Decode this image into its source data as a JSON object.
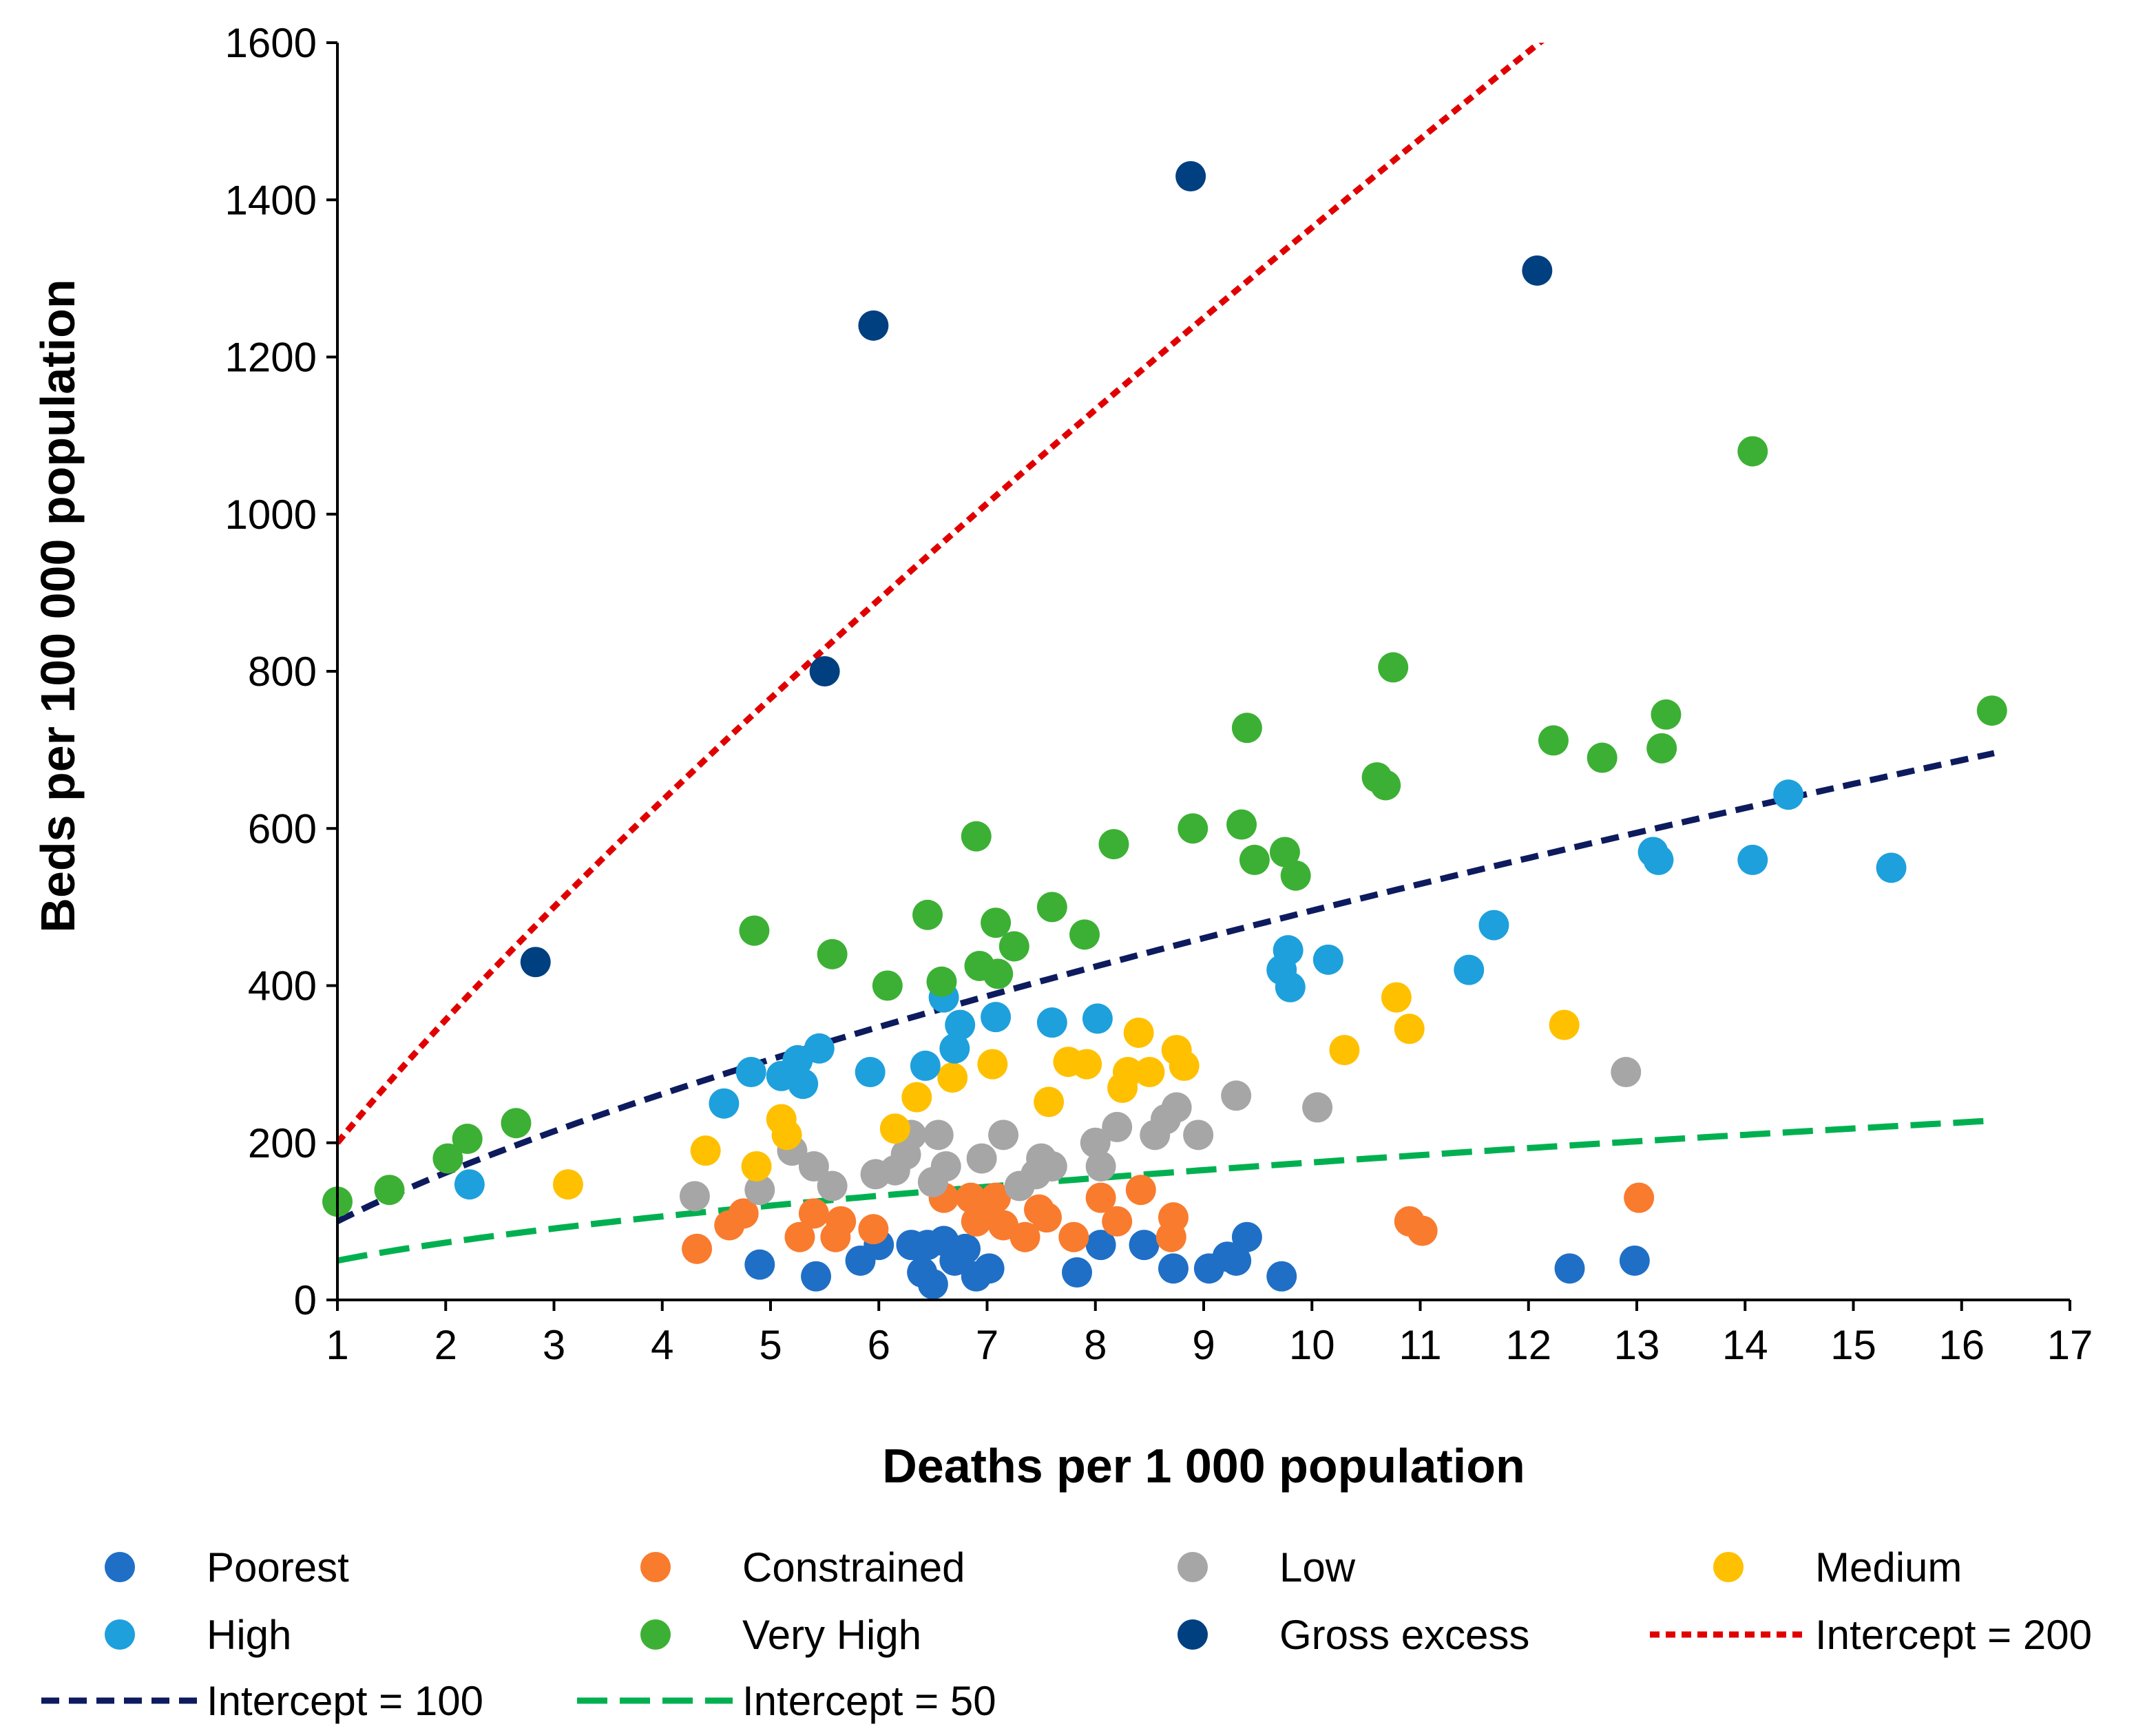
{
  "chart_data": {
    "type": "scatter",
    "title": "",
    "xlabel": "Deaths per 1 000 population",
    "ylabel": "Beds per 100 000 population",
    "xlim": [
      1,
      17
    ],
    "ylim": [
      0,
      1600
    ],
    "xticks": [
      1,
      2,
      3,
      4,
      5,
      6,
      7,
      8,
      9,
      10,
      11,
      12,
      13,
      14,
      15,
      16,
      17
    ],
    "yticks": [
      0,
      200,
      400,
      600,
      800,
      1000,
      1200,
      1400,
      1600
    ],
    "grid": false,
    "legend_position": "bottom",
    "series": [
      {
        "name": "Poorest",
        "color": "#1f6fc6",
        "points": [
          [
            4.9,
            45
          ],
          [
            5.42,
            30
          ],
          [
            5.83,
            50
          ],
          [
            6,
            70
          ],
          [
            6.3,
            70
          ],
          [
            6.4,
            35
          ],
          [
            6.45,
            70
          ],
          [
            6.5,
            20
          ],
          [
            6.6,
            75
          ],
          [
            6.7,
            50
          ],
          [
            6.8,
            65
          ],
          [
            6.9,
            30
          ],
          [
            7.02,
            40
          ],
          [
            7.83,
            35
          ],
          [
            8.05,
            70
          ],
          [
            8.45,
            70
          ],
          [
            8.72,
            40
          ],
          [
            9.05,
            40
          ],
          [
            9.22,
            55
          ],
          [
            9.3,
            50
          ],
          [
            9.4,
            80
          ],
          [
            9.72,
            30
          ],
          [
            12.38,
            40
          ],
          [
            12.98,
            50
          ]
        ]
      },
      {
        "name": "Constrained",
        "color": "#f97b2e",
        "points": [
          [
            4.32,
            65
          ],
          [
            4.62,
            95
          ],
          [
            4.75,
            110
          ],
          [
            5.27,
            80
          ],
          [
            5.4,
            110
          ],
          [
            5.6,
            80
          ],
          [
            5.65,
            100
          ],
          [
            5.95,
            90
          ],
          [
            6.6,
            130
          ],
          [
            6.85,
            130
          ],
          [
            6.9,
            100
          ],
          [
            7,
            110
          ],
          [
            7.08,
            130
          ],
          [
            7.15,
            95
          ],
          [
            7.35,
            80
          ],
          [
            7.48,
            115
          ],
          [
            7.55,
            105
          ],
          [
            7.8,
            80
          ],
          [
            8.05,
            130
          ],
          [
            8.2,
            100
          ],
          [
            8.42,
            140
          ],
          [
            8.7,
            80
          ],
          [
            8.72,
            105
          ],
          [
            10.9,
            100
          ],
          [
            11.02,
            88
          ],
          [
            13.02,
            130
          ]
        ]
      },
      {
        "name": "Low",
        "color": "#a6a6a6",
        "points": [
          [
            4.3,
            132
          ],
          [
            4.9,
            140
          ],
          [
            5.2,
            190
          ],
          [
            5.4,
            170
          ],
          [
            5.57,
            145
          ],
          [
            5.97,
            160
          ],
          [
            6.15,
            165
          ],
          [
            6.25,
            185
          ],
          [
            6.3,
            210
          ],
          [
            6.5,
            150
          ],
          [
            6.55,
            210
          ],
          [
            6.62,
            170
          ],
          [
            6.95,
            180
          ],
          [
            7.15,
            210
          ],
          [
            7.3,
            145
          ],
          [
            7.45,
            160
          ],
          [
            7.5,
            180
          ],
          [
            7.6,
            170
          ],
          [
            8,
            200
          ],
          [
            8.05,
            170
          ],
          [
            8.2,
            220
          ],
          [
            8.55,
            210
          ],
          [
            8.65,
            230
          ],
          [
            8.75,
            245
          ],
          [
            8.95,
            210
          ],
          [
            9.3,
            260
          ],
          [
            10.05,
            245
          ],
          [
            12.9,
            290
          ]
        ]
      },
      {
        "name": "Medium",
        "color": "#ffc000",
        "points": [
          [
            3.13,
            147
          ],
          [
            4.4,
            190
          ],
          [
            4.87,
            170
          ],
          [
            5.1,
            230
          ],
          [
            5.15,
            210
          ],
          [
            6.15,
            218
          ],
          [
            6.35,
            258
          ],
          [
            6.68,
            283
          ],
          [
            7.05,
            300
          ],
          [
            7.57,
            252
          ],
          [
            7.75,
            303
          ],
          [
            7.92,
            300
          ],
          [
            8.25,
            270
          ],
          [
            8.3,
            290
          ],
          [
            8.4,
            340
          ],
          [
            8.5,
            290
          ],
          [
            8.75,
            318
          ],
          [
            8.82,
            298
          ],
          [
            10.3,
            318
          ],
          [
            10.78,
            385
          ],
          [
            10.9,
            345
          ],
          [
            12.33,
            350
          ]
        ]
      },
      {
        "name": "High",
        "color": "#1ea0dc",
        "points": [
          [
            2.22,
            147
          ],
          [
            4.57,
            250
          ],
          [
            4.82,
            290
          ],
          [
            5.1,
            285
          ],
          [
            5.25,
            305
          ],
          [
            5.3,
            275
          ],
          [
            5.45,
            320
          ],
          [
            5.92,
            290
          ],
          [
            6.43,
            298
          ],
          [
            6.6,
            385
          ],
          [
            6.7,
            320
          ],
          [
            6.75,
            350
          ],
          [
            7.08,
            360
          ],
          [
            7.6,
            353
          ],
          [
            8.02,
            358
          ],
          [
            9.72,
            420
          ],
          [
            9.78,
            445
          ],
          [
            9.8,
            398
          ],
          [
            10.15,
            433
          ],
          [
            11.45,
            420
          ],
          [
            11.68,
            477
          ],
          [
            13.15,
            570
          ],
          [
            13.2,
            560
          ],
          [
            14.07,
            560
          ],
          [
            14.4,
            643
          ],
          [
            15.35,
            550
          ]
        ]
      },
      {
        "name": "Very High",
        "color": "#3cb034",
        "points": [
          [
            1,
            125
          ],
          [
            1.48,
            140
          ],
          [
            2.02,
            180
          ],
          [
            2.2,
            205
          ],
          [
            2.65,
            225
          ],
          [
            4.85,
            470
          ],
          [
            5.57,
            440
          ],
          [
            6.08,
            400
          ],
          [
            6.45,
            490
          ],
          [
            6.58,
            405
          ],
          [
            6.9,
            590
          ],
          [
            6.93,
            425
          ],
          [
            7.08,
            480
          ],
          [
            7.1,
            415
          ],
          [
            7.25,
            450
          ],
          [
            7.6,
            500
          ],
          [
            7.9,
            465
          ],
          [
            8.17,
            580
          ],
          [
            8.9,
            600
          ],
          [
            9.35,
            605
          ],
          [
            9.4,
            728
          ],
          [
            9.47,
            560
          ],
          [
            9.75,
            570
          ],
          [
            9.85,
            540
          ],
          [
            10.6,
            665
          ],
          [
            10.68,
            655
          ],
          [
            10.75,
            805
          ],
          [
            12.23,
            712
          ],
          [
            12.68,
            690
          ],
          [
            13.23,
            702
          ],
          [
            13.27,
            745
          ],
          [
            14.07,
            1080
          ],
          [
            16.28,
            750
          ]
        ]
      },
      {
        "name": "Gross excess",
        "color": "#004080",
        "points": [
          [
            2.83,
            430
          ],
          [
            5.5,
            800
          ],
          [
            5.95,
            1240
          ],
          [
            8.88,
            1430
          ],
          [
            12.08,
            1310
          ]
        ]
      }
    ],
    "lines": [
      {
        "name": "Intercept = 200",
        "color": "#e00000",
        "intercept": 200,
        "exponent": 0.834,
        "dash": "short",
        "x_range": [
          1,
          16.3
        ]
      },
      {
        "name": "Intercept = 100",
        "color": "#0d1b5e",
        "intercept": 100,
        "exponent": 0.695,
        "dash": "medium",
        "x_range": [
          1,
          16.3
        ]
      },
      {
        "name": "Intercept = 50",
        "color": "#00b050",
        "intercept": 50,
        "exponent": 0.544,
        "dash": "long",
        "x_range": [
          1,
          16.3
        ]
      }
    ]
  }
}
